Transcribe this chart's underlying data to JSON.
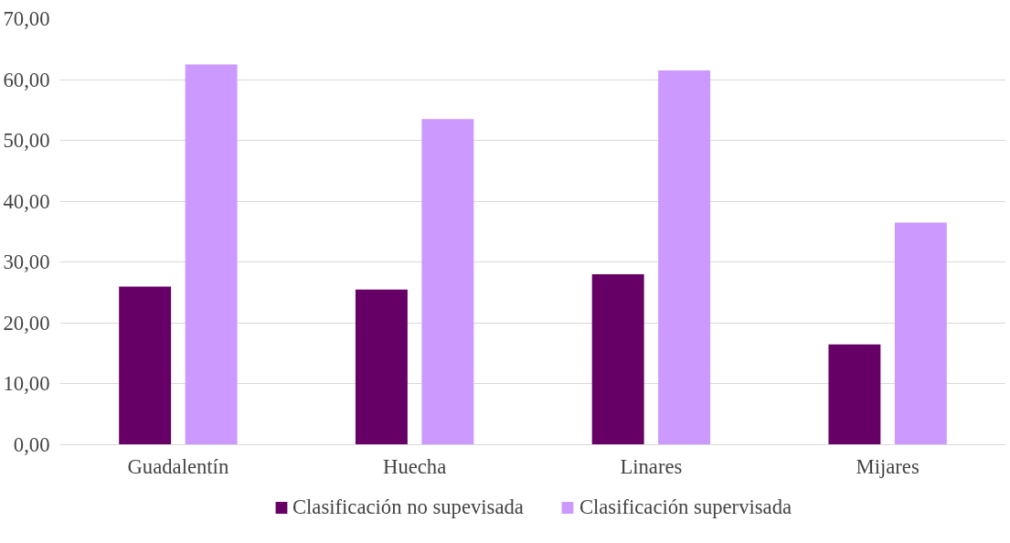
{
  "chart_data": {
    "type": "bar",
    "categories": [
      "Guadalentín",
      "Huecha",
      "Linares",
      "Mijares"
    ],
    "series": [
      {
        "name": "Clasificación no supevisada",
        "color": "#660066",
        "values": [
          26,
          25.5,
          28,
          16.5
        ]
      },
      {
        "name": "Clasificación supervisada",
        "color": "#cc99ff",
        "values": [
          62.5,
          53.5,
          61.5,
          36.5
        ]
      }
    ],
    "ylim": [
      0,
      70
    ],
    "yticks": [
      {
        "value": 0,
        "label": "0,00"
      },
      {
        "value": 10,
        "label": "10,00"
      },
      {
        "value": 20,
        "label": "20,00"
      },
      {
        "value": 30,
        "label": "30,00"
      },
      {
        "value": 40,
        "label": "40,00"
      },
      {
        "value": 50,
        "label": "50,00"
      },
      {
        "value": 60,
        "label": "60,00"
      },
      {
        "value": 70,
        "label": "70,00"
      }
    ],
    "grid": "y",
    "legend": "bottom"
  }
}
